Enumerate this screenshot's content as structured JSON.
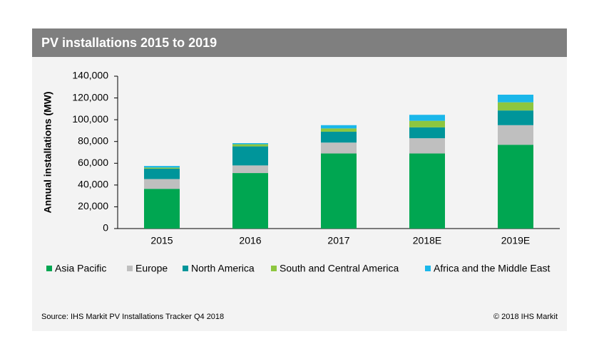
{
  "chart_data": {
    "type": "stacked_bar",
    "title": "PV installations 2015 to 2019",
    "y_label": "Annual installations (MW)",
    "categories": [
      "2015",
      "2016",
      "2017",
      "2018E",
      "2019E"
    ],
    "series": [
      {
        "name": "Asia Pacific",
        "color": "#00a651",
        "values": [
          36500,
          51000,
          69000,
          69000,
          77000
        ]
      },
      {
        "name": "Europe",
        "color": "#bfbfbf",
        "values": [
          9000,
          7000,
          10000,
          14000,
          18000
        ]
      },
      {
        "name": "North America",
        "color": "#00959a",
        "values": [
          9500,
          17500,
          10000,
          10000,
          13500
        ]
      },
      {
        "name": "South and Central America",
        "color": "#8dc63f",
        "values": [
          1000,
          2000,
          3000,
          6000,
          7500
        ]
      },
      {
        "name": "Africa and the Middle East",
        "color": "#1ab7ea",
        "values": [
          1500,
          1000,
          3000,
          5500,
          7000
        ]
      }
    ],
    "ylim": [
      0,
      140000
    ],
    "yticks": [
      0,
      {
        "value": 20000,
        "label": "20,000"
      },
      {
        "value": 40000,
        "label": "40,000"
      },
      {
        "value": 60000,
        "label": "60,000"
      },
      {
        "value": 80000,
        "label": "80,000"
      },
      {
        "value": 100000,
        "label": "100,000"
      },
      {
        "value": 120000,
        "label": "120,000"
      },
      {
        "value": 140000,
        "label": "140,000"
      }
    ],
    "source": "Source: IHS Markit PV Installations Tracker Q4 2018",
    "copyright": "© 2018 IHS Markit"
  }
}
